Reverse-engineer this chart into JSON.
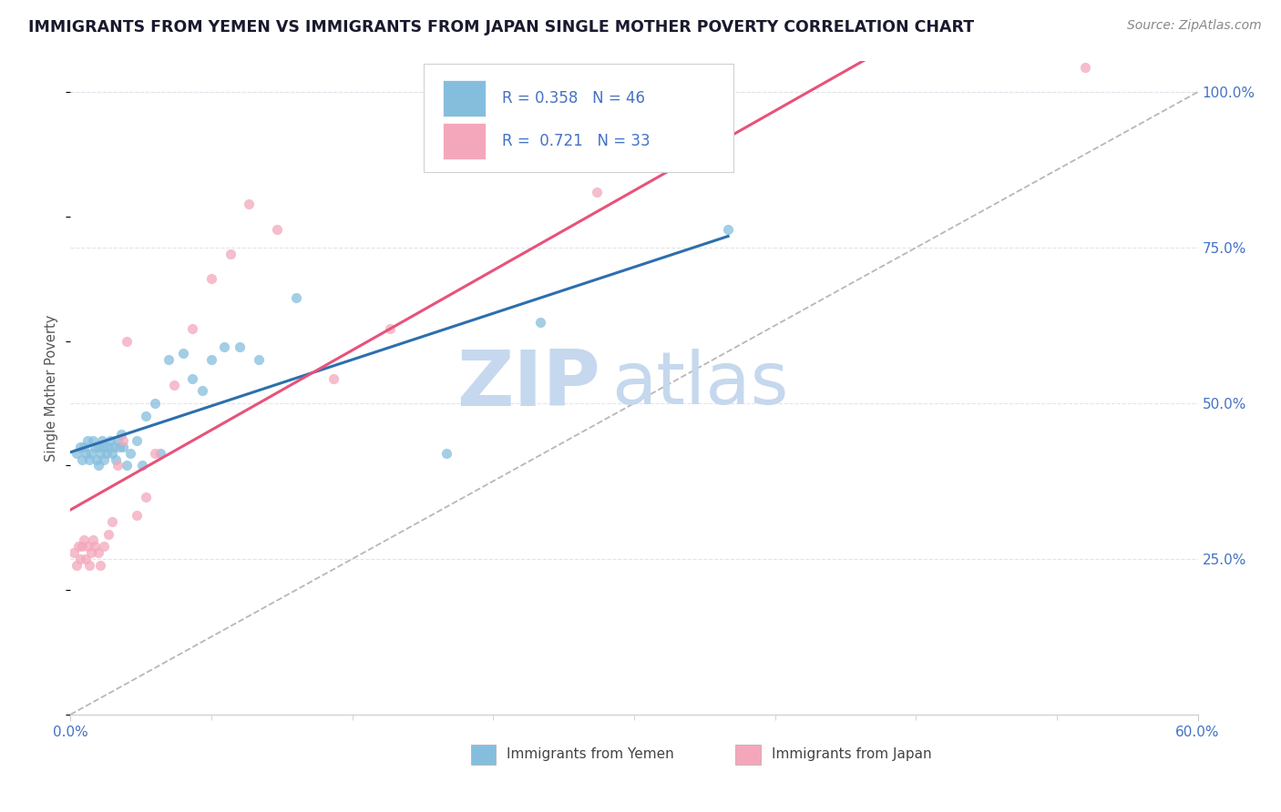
{
  "title": "IMMIGRANTS FROM YEMEN VS IMMIGRANTS FROM JAPAN SINGLE MOTHER POVERTY CORRELATION CHART",
  "source": "Source: ZipAtlas.com",
  "ylabel": "Single Mother Poverty",
  "xlim": [
    0.0,
    0.6
  ],
  "ylim": [
    0.0,
    1.05
  ],
  "ytick_labels_right": [
    "25.0%",
    "50.0%",
    "75.0%",
    "100.0%"
  ],
  "ytick_positions_right": [
    0.25,
    0.5,
    0.75,
    1.0
  ],
  "legend_R_yemen": "R = 0.358",
  "legend_N_yemen": "N = 46",
  "legend_R_japan": "R =  0.721",
  "legend_N_japan": "N = 33",
  "watermark_zip": "ZIP",
  "watermark_atlas": "atlas",
  "watermark_color": "#c5d8ee",
  "yemen_color": "#85bedd",
  "japan_color": "#f4a7bb",
  "yemen_line_color": "#2c6fad",
  "japan_line_color": "#e8527a",
  "diagonal_color": "#b0b0b0",
  "grid_color": "#e0e4ec",
  "background_color": "#ffffff",
  "title_color": "#1a1a2e",
  "source_color": "#888888",
  "tick_label_color": "#4472c4",
  "ylabel_color": "#555555",
  "bottom_label_color": "#444444",
  "yemen_scatter_x": [
    0.003,
    0.005,
    0.006,
    0.007,
    0.008,
    0.009,
    0.01,
    0.011,
    0.012,
    0.013,
    0.014,
    0.015,
    0.015,
    0.016,
    0.017,
    0.018,
    0.018,
    0.019,
    0.02,
    0.021,
    0.022,
    0.023,
    0.024,
    0.025,
    0.026,
    0.027,
    0.028,
    0.03,
    0.032,
    0.035,
    0.038,
    0.04,
    0.045,
    0.048,
    0.052,
    0.06,
    0.065,
    0.07,
    0.075,
    0.082,
    0.09,
    0.1,
    0.12,
    0.2,
    0.25,
    0.35
  ],
  "yemen_scatter_y": [
    0.42,
    0.43,
    0.41,
    0.43,
    0.42,
    0.44,
    0.41,
    0.42,
    0.44,
    0.43,
    0.41,
    0.43,
    0.4,
    0.42,
    0.44,
    0.43,
    0.41,
    0.42,
    0.43,
    0.44,
    0.42,
    0.43,
    0.41,
    0.44,
    0.43,
    0.45,
    0.43,
    0.4,
    0.42,
    0.44,
    0.4,
    0.48,
    0.5,
    0.42,
    0.57,
    0.58,
    0.54,
    0.52,
    0.57,
    0.59,
    0.59,
    0.57,
    0.67,
    0.42,
    0.63,
    0.78
  ],
  "japan_scatter_x": [
    0.002,
    0.003,
    0.004,
    0.005,
    0.006,
    0.007,
    0.008,
    0.009,
    0.01,
    0.011,
    0.012,
    0.013,
    0.015,
    0.016,
    0.018,
    0.02,
    0.022,
    0.025,
    0.028,
    0.03,
    0.035,
    0.04,
    0.045,
    0.055,
    0.065,
    0.075,
    0.085,
    0.095,
    0.11,
    0.14,
    0.17,
    0.28,
    0.54
  ],
  "japan_scatter_y": [
    0.26,
    0.24,
    0.27,
    0.25,
    0.27,
    0.28,
    0.25,
    0.27,
    0.24,
    0.26,
    0.28,
    0.27,
    0.26,
    0.24,
    0.27,
    0.29,
    0.31,
    0.4,
    0.44,
    0.6,
    0.32,
    0.35,
    0.42,
    0.53,
    0.62,
    0.7,
    0.74,
    0.82,
    0.78,
    0.54,
    0.62,
    0.84,
    1.04
  ],
  "bottom_label_yemen": "Immigrants from Yemen",
  "bottom_label_japan": "Immigrants from Japan"
}
